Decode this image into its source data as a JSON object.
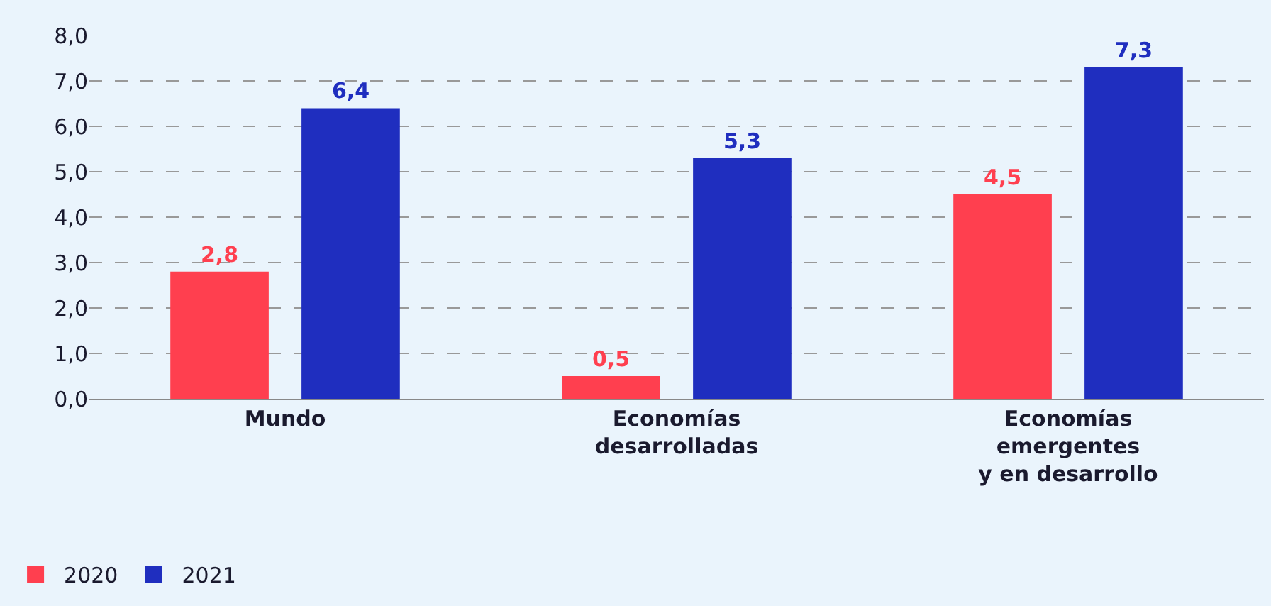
{
  "chart_data": {
    "type": "bar",
    "categories": [
      "Mundo",
      "Economías\ndesarrolladas",
      "Economías\nemergentes\ny en desarrollo"
    ],
    "series": [
      {
        "name": "2020",
        "color": "#ff3f4f",
        "values": [
          2.8,
          0.5,
          4.5
        ],
        "value_labels": [
          "2,8",
          "0,5",
          "4,5"
        ]
      },
      {
        "name": "2021",
        "color": "#1f2ebf",
        "values": [
          6.4,
          5.3,
          7.3
        ],
        "value_labels": [
          "6,4",
          "5,3",
          "7,3"
        ]
      }
    ],
    "ylim": [
      0,
      8
    ],
    "yticks": [
      {
        "value": 0,
        "label": "0,0"
      },
      {
        "value": 1,
        "label": "1,0"
      },
      {
        "value": 2,
        "label": "2,0"
      },
      {
        "value": 3,
        "label": "3,0"
      },
      {
        "value": 4,
        "label": "4,0"
      },
      {
        "value": 5,
        "label": "5,0"
      },
      {
        "value": 6,
        "label": "6,0"
      },
      {
        "value": 7,
        "label": "7,0"
      },
      {
        "value": 8,
        "label": "8,0"
      }
    ],
    "grid": "y",
    "legend": "bottom left"
  }
}
